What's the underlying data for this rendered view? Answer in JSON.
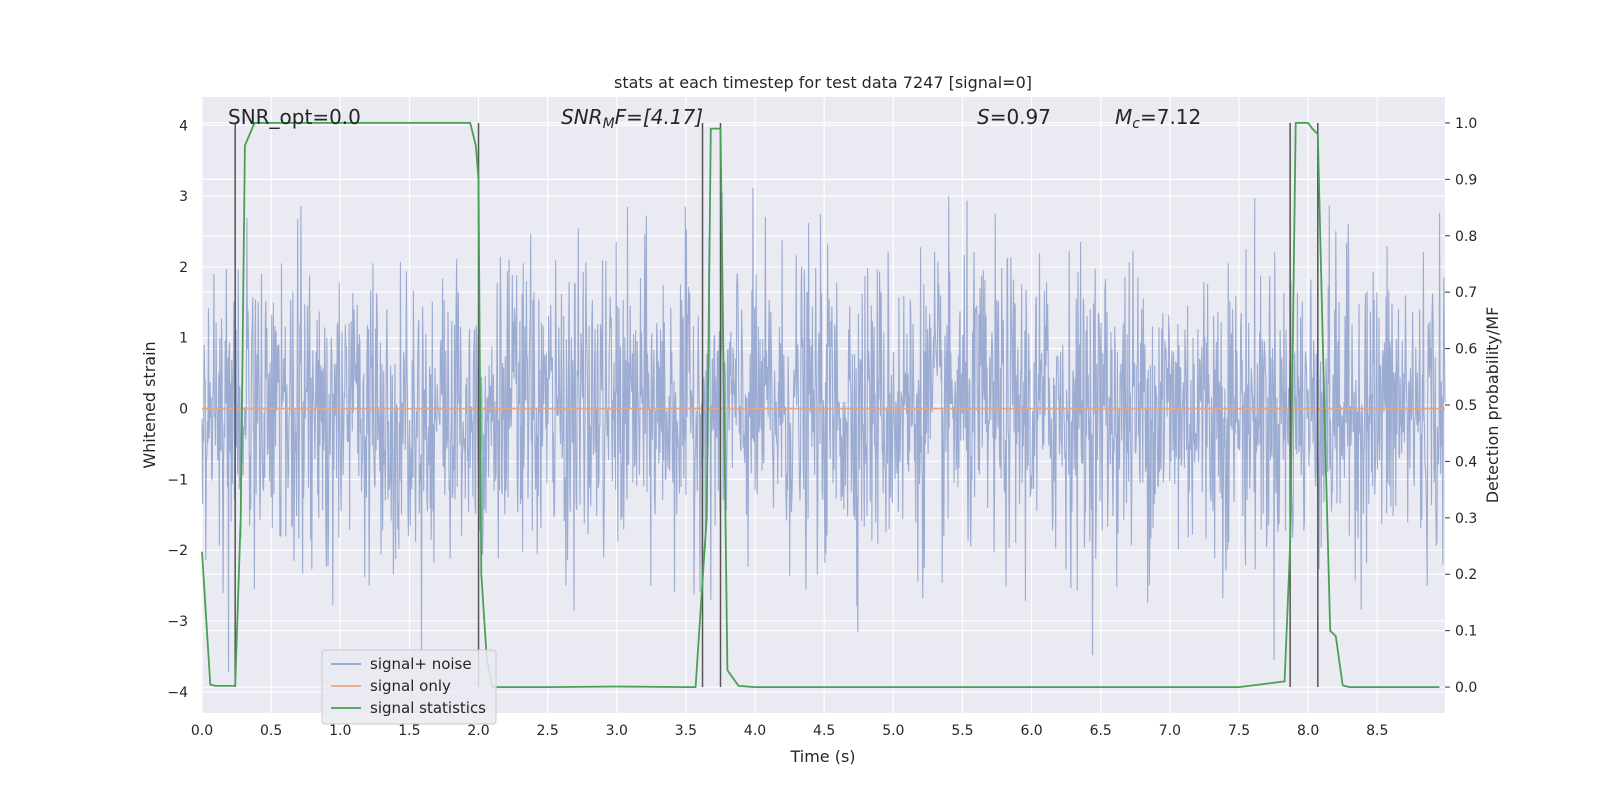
{
  "chart_data": {
    "type": "line",
    "title": "stats at each timestep for test data 7247 [signal=0]",
    "xlabel": "Time (s)",
    "ylabel_left": "Whitened strain",
    "ylabel_right": "Detection probability/MF",
    "xlim": [
      0,
      8.99
    ],
    "ylim_left": [
      -4.3,
      4.4
    ],
    "ylim_right": [
      -0.046,
      1.046
    ],
    "x_ticks": [
      "0.0",
      "0.5",
      "1.0",
      "1.5",
      "2.0",
      "2.5",
      "3.0",
      "3.5",
      "4.0",
      "4.5",
      "5.0",
      "5.5",
      "6.0",
      "6.5",
      "7.0",
      "7.5",
      "8.0",
      "8.5"
    ],
    "y_ticks_left": [
      "−4",
      "−3",
      "−2",
      "−1",
      "0",
      "1",
      "2",
      "3",
      "4"
    ],
    "y_ticks_right": [
      "0.0",
      "0.1",
      "0.2",
      "0.3",
      "0.4",
      "0.5",
      "0.6",
      "0.7",
      "0.8",
      "0.9",
      "1.0"
    ],
    "annotations": {
      "snr_opt": "SNR_opt=0.0",
      "snr_mf_base": "SNR",
      "snr_mf_sub": "M",
      "snr_mf_rest": "F=[4.17]",
      "s_base": "S",
      "s_rest": "=0.97",
      "mc_base": "M",
      "mc_sub": "c",
      "mc_rest": "=7.12"
    },
    "series": [
      {
        "name": "signal+ noise",
        "axis": "left",
        "color": "#8da0cb",
        "noise_scale": 1.0,
        "note": "whitened noise, approx range -3.9..3.4"
      },
      {
        "name": "signal only",
        "axis": "left",
        "color": "#e8a582",
        "x": [
          0,
          8.99
        ],
        "y": [
          0,
          0
        ]
      },
      {
        "name": "signal statistics",
        "axis": "right",
        "color": "#4a9f57",
        "x": [
          0.0,
          0.06,
          0.1,
          0.2,
          0.24,
          0.28,
          0.31,
          0.38,
          0.5,
          1.0,
          1.5,
          1.94,
          1.98,
          2.0,
          2.02,
          2.06,
          2.1,
          2.5,
          3.0,
          3.5,
          3.57,
          3.61,
          3.65,
          3.68,
          3.71,
          3.75,
          3.8,
          3.88,
          4.0,
          5.0,
          6.0,
          7.0,
          7.5,
          7.83,
          7.87,
          7.91,
          7.95,
          8.0,
          8.03,
          8.07,
          8.12,
          8.16,
          8.2,
          8.25,
          8.3,
          8.5,
          8.95
        ],
        "y": [
          0.24,
          0.004,
          0.002,
          0.002,
          0.002,
          0.3,
          0.96,
          1.0,
          1.0,
          1.0,
          1.0,
          1.0,
          0.96,
          0.9,
          0.2,
          0.05,
          0.0,
          0.0,
          0.001,
          0.0,
          0.0,
          0.15,
          0.3,
          0.99,
          0.99,
          0.99,
          0.03,
          0.002,
          0.0,
          0.0,
          0.0,
          0.0,
          0.0,
          0.01,
          0.25,
          1.0,
          1.0,
          1.0,
          0.99,
          0.98,
          0.47,
          0.1,
          0.09,
          0.003,
          0.0,
          0.0,
          0.0
        ]
      }
    ],
    "vertical_markers_x": [
      0.24,
      2.0,
      3.62,
      3.75,
      7.87,
      8.07
    ],
    "legend": {
      "position": "lower-left",
      "entries": [
        "signal+ noise",
        "signal only",
        "signal statistics"
      ]
    },
    "grid": true,
    "colors": {
      "background": "#eaeaf2",
      "grid": "#ffffff",
      "marker": "#555555"
    }
  }
}
